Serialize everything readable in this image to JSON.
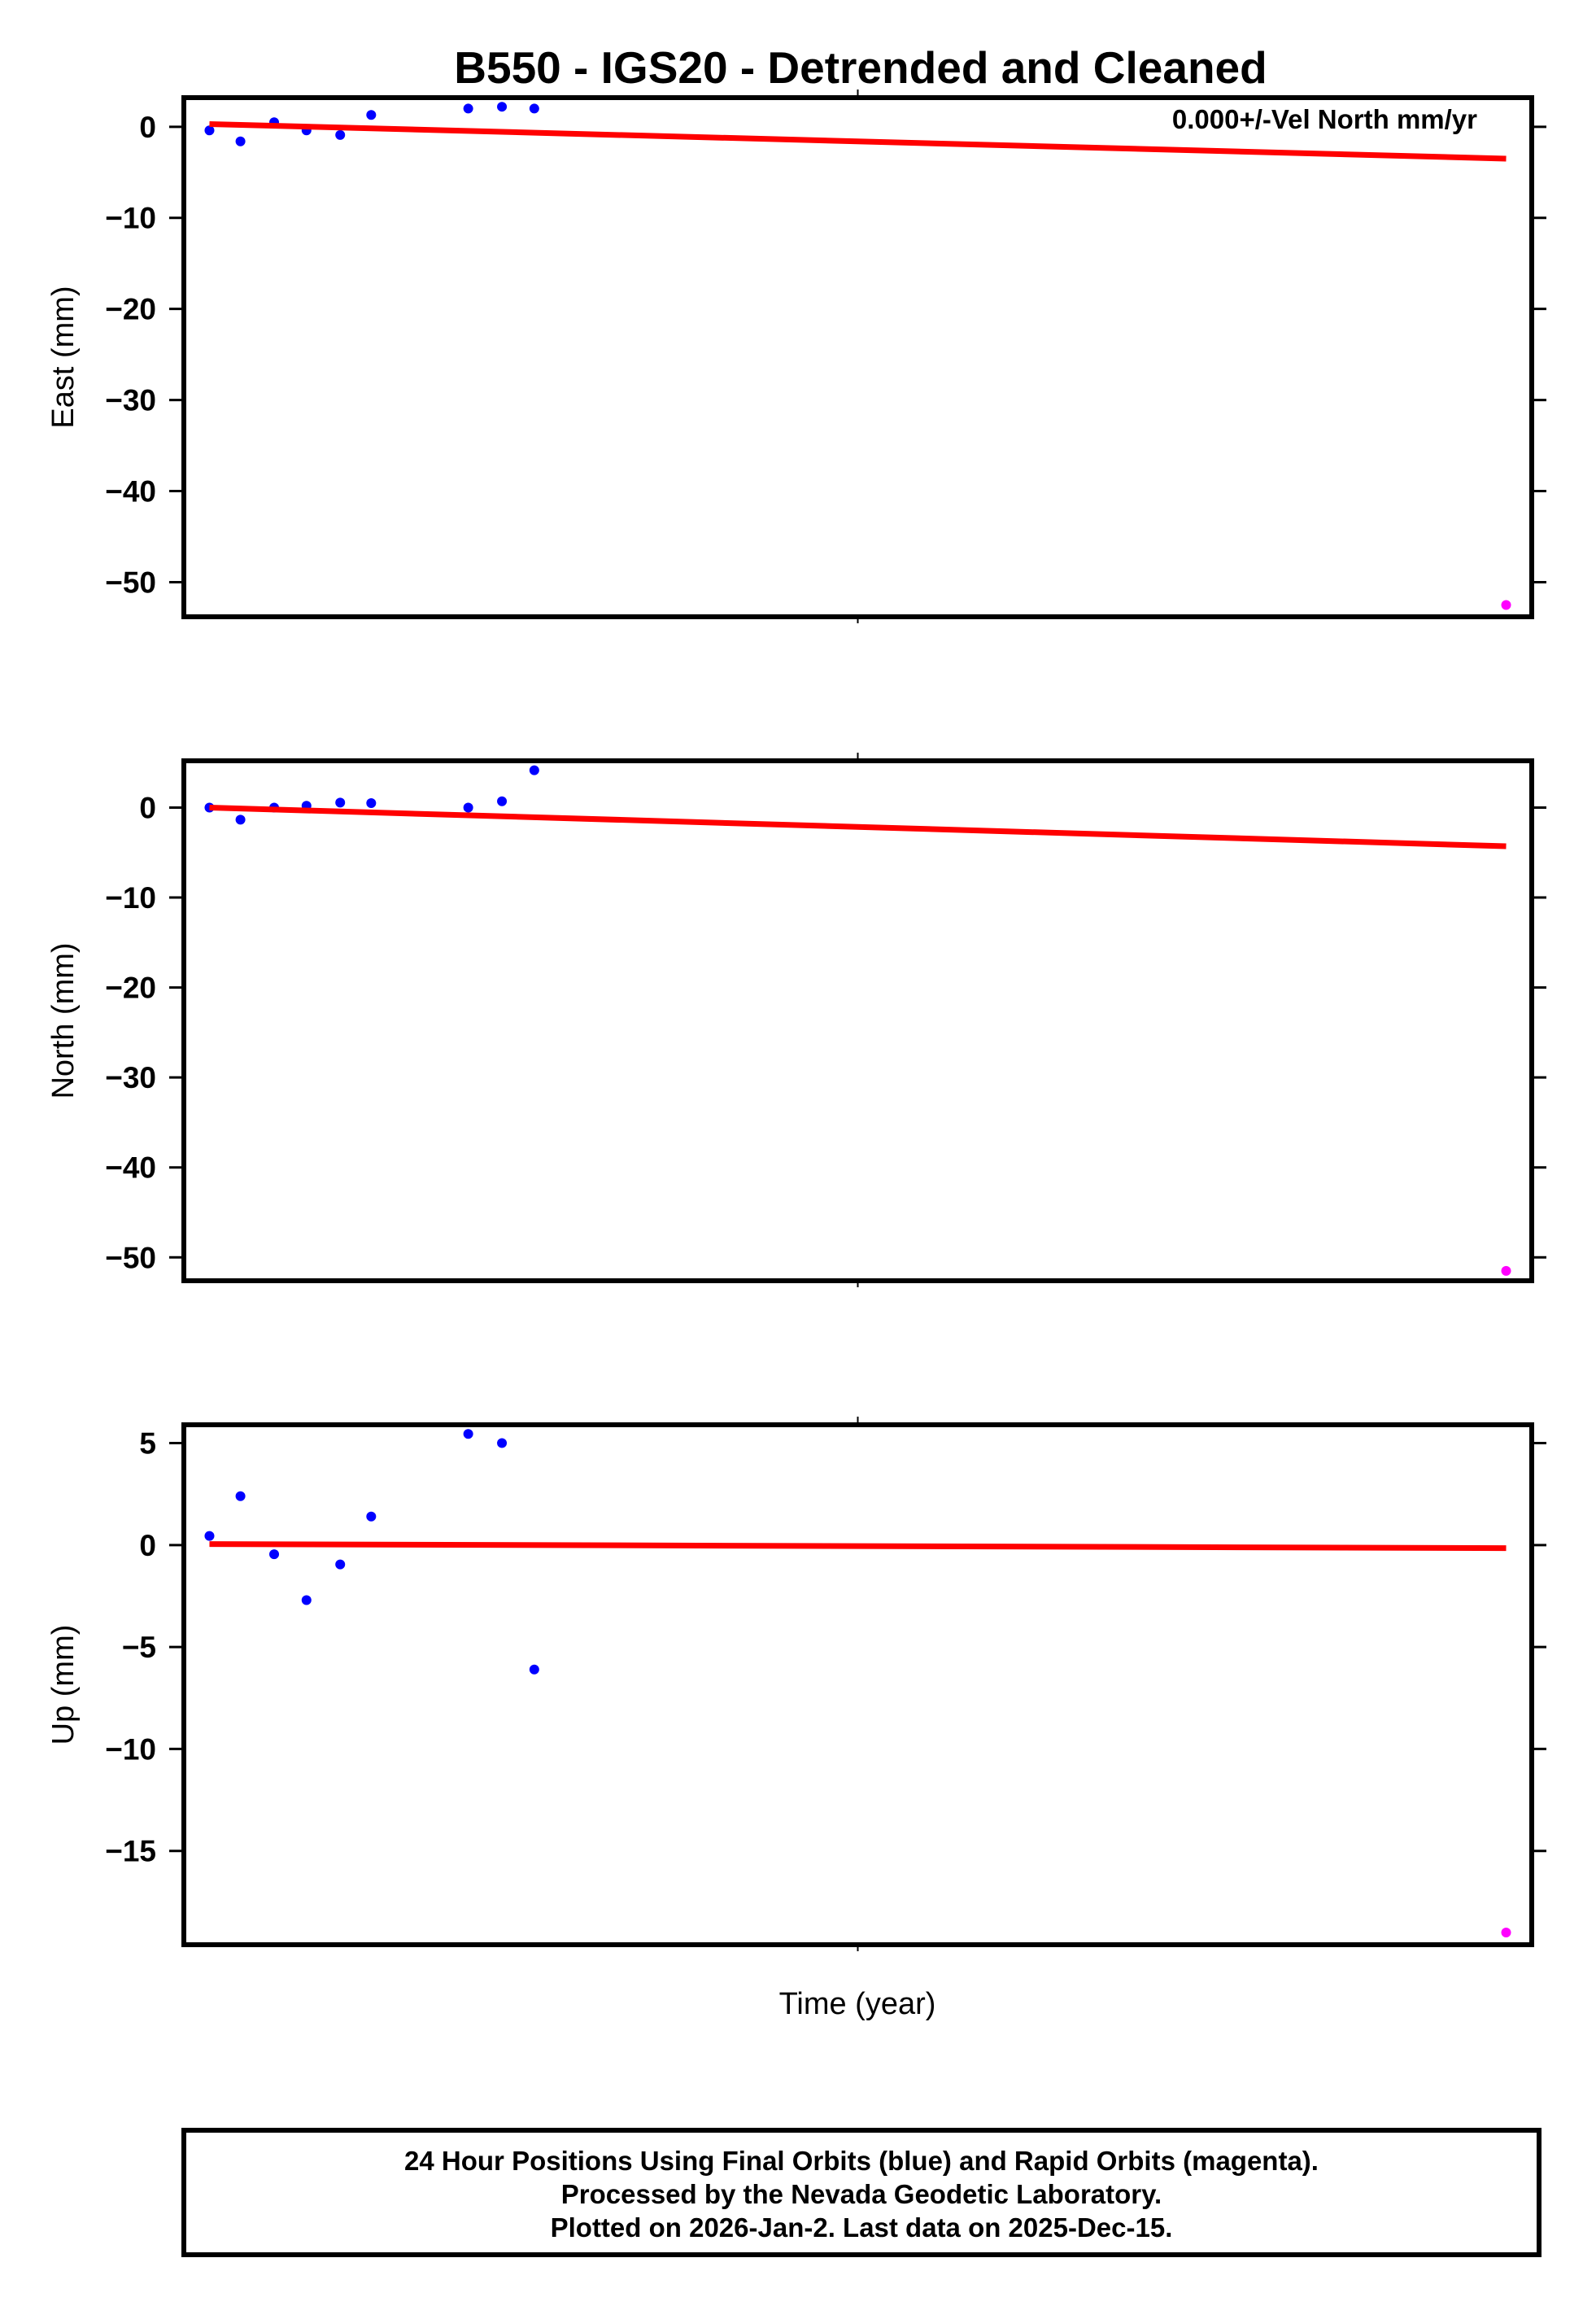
{
  "title": "B550 - IGS20 - Detrended and Cleaned",
  "xlabel": "Time (year)",
  "annotation": "0.000+/-Vel North mm/yr",
  "footer": {
    "line1": "24 Hour Positions Using Final Orbits (blue) and Rapid Orbits (magenta).",
    "line2": "Processed by the Nevada Geodetic Laboratory.",
    "line3": "Plotted on 2026-Jan-2. Last data on 2025-Dec-15."
  },
  "colors": {
    "final_orbits": "#0000ff",
    "rapid_orbits": "#ff00ff",
    "trend_line": "#ff0000",
    "axes": "#000000"
  },
  "chart_data": [
    {
      "type": "scatter",
      "panel": "east",
      "title": "B550 - IGS20 - Detrended and Cleaned",
      "xlabel": "",
      "ylabel": "East (mm)",
      "ylim": [
        -53.8,
        3.2
      ],
      "yticks": [
        0,
        -10,
        -20,
        -30,
        -40,
        -50
      ],
      "ytick_labels": [
        "0",
        "−10",
        "−20",
        "−30",
        "−40",
        "−50"
      ],
      "grid": false,
      "annotation": "0.000+/-Vel North mm/yr",
      "series": [
        {
          "name": "Final Orbits (blue)",
          "color": "#0000ff",
          "x": [
            0.019,
            0.042,
            0.067,
            0.091,
            0.116,
            0.139,
            0.211,
            0.236,
            0.26
          ],
          "values": [
            -0.4,
            -1.6,
            0.5,
            -0.4,
            -0.9,
            1.3,
            2.0,
            2.2,
            2.0
          ]
        },
        {
          "name": "Rapid Orbits (magenta)",
          "color": "#ff00ff",
          "x": [
            0.981
          ],
          "values": [
            -52.5
          ]
        },
        {
          "name": "Trend",
          "color": "#ff0000",
          "kind": "line",
          "x": [
            0.019,
            0.981
          ],
          "values": [
            0.3,
            -3.5
          ]
        }
      ]
    },
    {
      "type": "scatter",
      "panel": "north",
      "xlabel": "",
      "ylabel": "North (mm)",
      "ylim": [
        -52.6,
        5.2
      ],
      "yticks": [
        0,
        -10,
        -20,
        -30,
        -40,
        -50
      ],
      "ytick_labels": [
        "0",
        "−10",
        "−20",
        "−30",
        "−40",
        "−50"
      ],
      "grid": false,
      "series": [
        {
          "name": "Final Orbits (blue)",
          "color": "#0000ff",
          "x": [
            0.019,
            0.042,
            0.067,
            0.091,
            0.116,
            0.139,
            0.211,
            0.236,
            0.26
          ],
          "values": [
            0.0,
            -1.35,
            0.0,
            0.2,
            0.55,
            0.5,
            0.0,
            0.7,
            4.15
          ]
        },
        {
          "name": "Rapid Orbits (magenta)",
          "color": "#ff00ff",
          "x": [
            0.981
          ],
          "values": [
            -51.5
          ]
        },
        {
          "name": "Trend",
          "color": "#ff0000",
          "kind": "line",
          "x": [
            0.019,
            0.981
          ],
          "values": [
            0.0,
            -4.3
          ]
        }
      ]
    },
    {
      "type": "scatter",
      "panel": "up",
      "xlabel": "Time (year)",
      "ylabel": "Up (mm)",
      "ylim": [
        -19.6,
        5.9
      ],
      "yticks": [
        5,
        0,
        -5,
        -10,
        -15
      ],
      "ytick_labels": [
        "5",
        "0",
        "−5",
        "−10",
        "−15"
      ],
      "grid": false,
      "series": [
        {
          "name": "Final Orbits (blue)",
          "color": "#0000ff",
          "x": [
            0.019,
            0.042,
            0.067,
            0.091,
            0.116,
            0.139,
            0.211,
            0.236,
            0.26
          ],
          "values": [
            0.45,
            2.4,
            -0.45,
            -2.7,
            -0.95,
            1.4,
            5.45,
            5.0,
            -6.1
          ]
        },
        {
          "name": "Rapid Orbits (magenta)",
          "color": "#ff00ff",
          "x": [
            0.981
          ],
          "values": [
            -19.0
          ]
        },
        {
          "name": "Trend",
          "color": "#ff0000",
          "kind": "line",
          "x": [
            0.019,
            0.981
          ],
          "values": [
            0.05,
            -0.15
          ]
        }
      ]
    }
  ]
}
